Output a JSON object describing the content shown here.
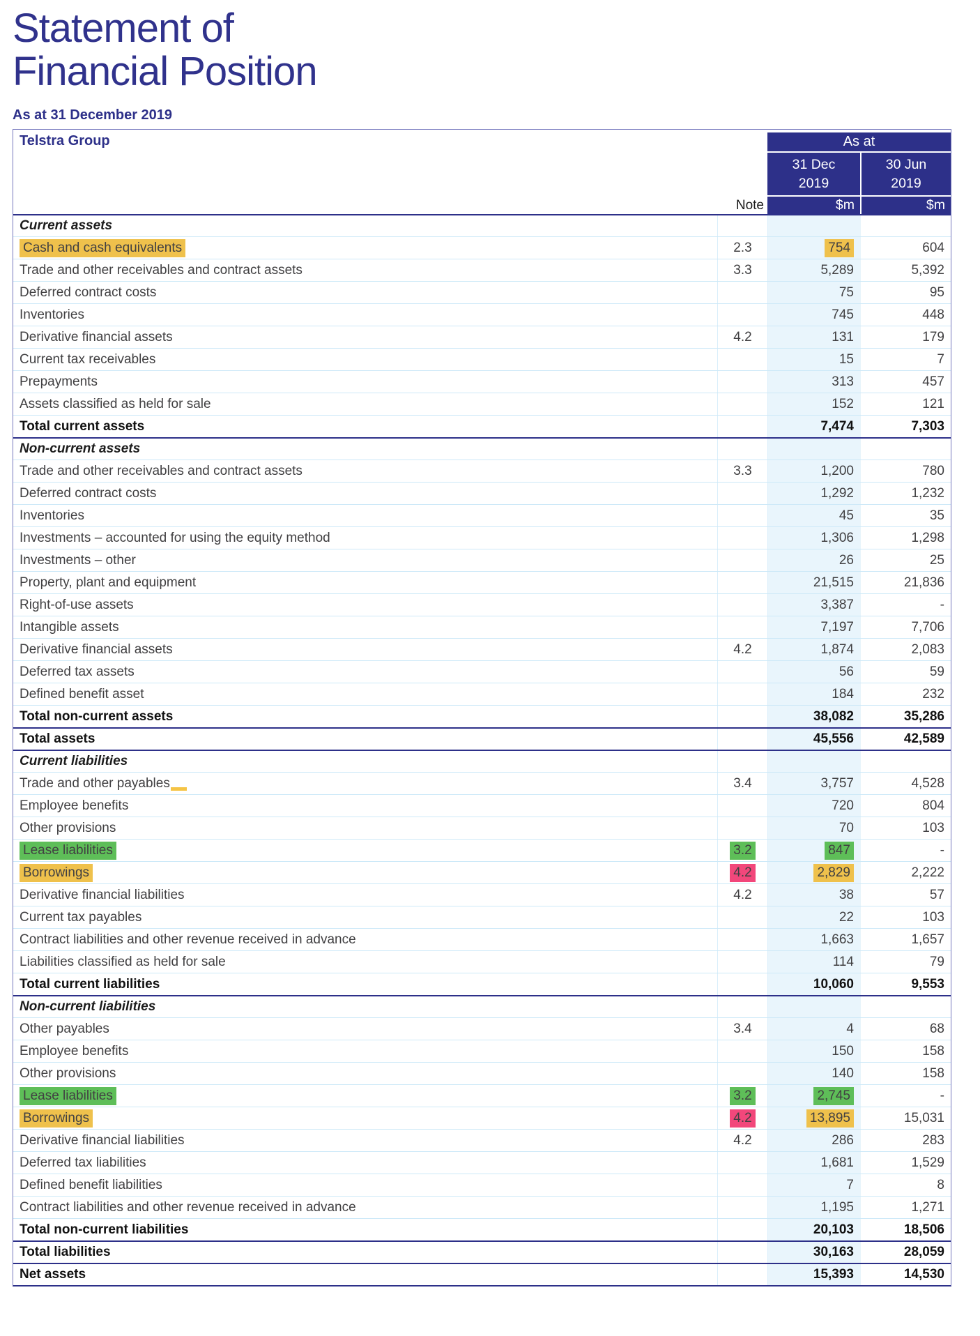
{
  "title_lines": [
    "Statement of",
    "Financial Position"
  ],
  "subtitle": "As at 31 December 2019",
  "colors": {
    "navy": "#2d3089",
    "body_text": "#414042",
    "column_tint": "#e9f5fc",
    "row_line": "#cde9f8",
    "highlight_yellow": "#efc14c",
    "highlight_green": "#5ebe58",
    "highlight_pink": "#f2477b"
  },
  "table": {
    "corner_title": "Telstra Group",
    "note_header": "Note",
    "group_header": "As at",
    "columns": [
      {
        "date_line1": "31 Dec",
        "date_line2": "2019",
        "unit": "$m"
      },
      {
        "date_line1": "30 Jun",
        "date_line2": "2019",
        "unit": "$m"
      }
    ],
    "sections": [
      {
        "header": "Current assets",
        "rows": [
          {
            "label": "Cash and cash equivalents",
            "note": "2.3",
            "dec": "754",
            "jun": "604",
            "label_hl": "yellow",
            "dec_hl": "yellow"
          },
          {
            "label": "Trade and other receivables and contract assets",
            "note": "3.3",
            "dec": "5,289",
            "jun": "5,392"
          },
          {
            "label": "Deferred contract costs",
            "note": "",
            "dec": "75",
            "jun": "95"
          },
          {
            "label": "Inventories",
            "note": "",
            "dec": "745",
            "jun": "448"
          },
          {
            "label": "Derivative financial assets",
            "note": "4.2",
            "dec": "131",
            "jun": "179"
          },
          {
            "label": "Current tax receivables",
            "note": "",
            "dec": "15",
            "jun": "7"
          },
          {
            "label": "Prepayments",
            "note": "",
            "dec": "313",
            "jun": "457"
          },
          {
            "label": "Assets classified as held for sale",
            "note": "",
            "dec": "152",
            "jun": "121"
          },
          {
            "label": "Total current assets",
            "note": "",
            "dec": "7,474",
            "jun": "7,303",
            "kind": "total"
          }
        ]
      },
      {
        "header": "Non-current assets",
        "rows": [
          {
            "label": "Trade and other receivables and contract assets",
            "note": "3.3",
            "dec": "1,200",
            "jun": "780"
          },
          {
            "label": "Deferred contract costs",
            "note": "",
            "dec": "1,292",
            "jun": "1,232"
          },
          {
            "label": "Inventories",
            "note": "",
            "dec": "45",
            "jun": "35"
          },
          {
            "label": "Investments – accounted for using the equity method",
            "note": "",
            "dec": "1,306",
            "jun": "1,298"
          },
          {
            "label": "Investments – other",
            "note": "",
            "dec": "26",
            "jun": "25"
          },
          {
            "label": "Property, plant and equipment",
            "note": "",
            "dec": "21,515",
            "jun": "21,836"
          },
          {
            "label": "Right-of-use assets",
            "note": "",
            "dec": "3,387",
            "jun": "-"
          },
          {
            "label": "Intangible assets",
            "note": "",
            "dec": "7,197",
            "jun": "7,706"
          },
          {
            "label": "Derivative financial assets",
            "note": "4.2",
            "dec": "1,874",
            "jun": "2,083"
          },
          {
            "label": "Deferred tax assets",
            "note": "",
            "dec": "56",
            "jun": "59"
          },
          {
            "label": "Defined benefit asset",
            "note": "",
            "dec": "184",
            "jun": "232"
          },
          {
            "label": "Total non-current assets",
            "note": "",
            "dec": "38,082",
            "jun": "35,286",
            "kind": "total"
          }
        ]
      },
      {
        "header": null,
        "rows": [
          {
            "label": "Total assets",
            "note": "",
            "dec": "45,556",
            "jun": "42,589",
            "kind": "grand"
          }
        ]
      },
      {
        "header": "Current liabilities",
        "rows": [
          {
            "label": "Trade and other payables",
            "note": "3.4",
            "dec": "3,757",
            "jun": "4,528",
            "dash_mark": true
          },
          {
            "label": "Employee benefits",
            "note": "",
            "dec": "720",
            "jun": "804"
          },
          {
            "label": "Other provisions",
            "note": "",
            "dec": "70",
            "jun": "103"
          },
          {
            "label": "Lease liabilities",
            "note": "3.2",
            "dec": "847",
            "jun": "-",
            "label_hl": "green",
            "note_hl": "green",
            "dec_hl": "green"
          },
          {
            "label": "Borrowings",
            "note": "4.2",
            "dec": "2,829",
            "jun": "2,222",
            "label_hl": "yellow",
            "note_hl": "pink",
            "dec_hl": "yellow"
          },
          {
            "label": "Derivative financial liabilities",
            "note": "4.2",
            "dec": "38",
            "jun": "57"
          },
          {
            "label": "Current tax payables",
            "note": "",
            "dec": "22",
            "jun": "103"
          },
          {
            "label": "Contract liabilities and other revenue received in advance",
            "note": "",
            "dec": "1,663",
            "jun": "1,657"
          },
          {
            "label": "Liabilities classified as held for sale",
            "note": "",
            "dec": "114",
            "jun": "79"
          },
          {
            "label": "Total current liabilities",
            "note": "",
            "dec": "10,060",
            "jun": "9,553",
            "kind": "total"
          }
        ]
      },
      {
        "header": "Non-current liabilities",
        "rows": [
          {
            "label": "Other payables",
            "note": "3.4",
            "dec": "4",
            "jun": "68"
          },
          {
            "label": "Employee benefits",
            "note": "",
            "dec": "150",
            "jun": "158"
          },
          {
            "label": "Other provisions",
            "note": "",
            "dec": "140",
            "jun": "158"
          },
          {
            "label": "Lease liabilities",
            "note": "3.2",
            "dec": "2,745",
            "jun": "-",
            "label_hl": "green",
            "note_hl": "green",
            "dec_hl": "green"
          },
          {
            "label": "Borrowings",
            "note": "4.2",
            "dec": "13,895",
            "jun": "15,031",
            "label_hl": "yellow",
            "note_hl": "pink",
            "dec_hl": "yellow"
          },
          {
            "label": "Derivative financial liabilities",
            "note": "4.2",
            "dec": "286",
            "jun": "283"
          },
          {
            "label": "Deferred tax liabilities",
            "note": "",
            "dec": "1,681",
            "jun": "1,529"
          },
          {
            "label": "Defined benefit liabilities",
            "note": "",
            "dec": "7",
            "jun": "8"
          },
          {
            "label": "Contract liabilities and other revenue received in advance",
            "note": "",
            "dec": "1,195",
            "jun": "1,271"
          },
          {
            "label": "Total non-current liabilities",
            "note": "",
            "dec": "20,103",
            "jun": "18,506",
            "kind": "total"
          }
        ]
      },
      {
        "header": null,
        "rows": [
          {
            "label": "Total liabilities",
            "note": "",
            "dec": "30,163",
            "jun": "28,059",
            "kind": "grand"
          }
        ]
      },
      {
        "header": null,
        "rows": [
          {
            "label": "Net assets",
            "note": "",
            "dec": "15,393",
            "jun": "14,530",
            "kind": "grand"
          }
        ]
      }
    ]
  }
}
